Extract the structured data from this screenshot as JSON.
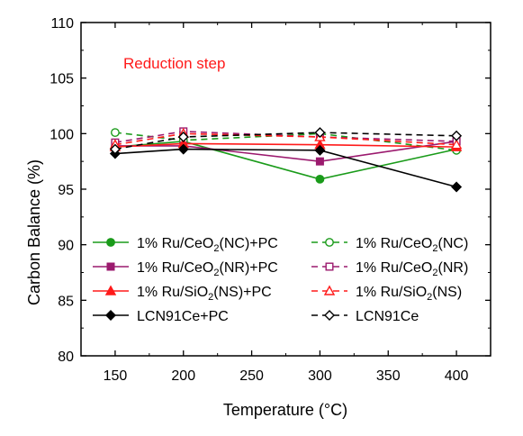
{
  "chart_data": {
    "type": "line",
    "title": "",
    "annotation": "Reduction step",
    "annotation_color": "#ff1a1a",
    "xlabel": "Temperature (°C)",
    "ylabel": "Carbon Balance (%)",
    "xlim": [
      125,
      425
    ],
    "ylim": [
      80,
      110
    ],
    "xticks": [
      150,
      200,
      250,
      300,
      350,
      400
    ],
    "yticks": [
      80,
      85,
      90,
      95,
      100,
      105,
      110
    ],
    "grid": false,
    "legend_position": "bottom-left",
    "x": [
      150,
      200,
      300,
      400
    ],
    "series": [
      {
        "name": "1% Ru/CeO2(NC)+PC",
        "label_parts": [
          "1% Ru/CeO",
          "2",
          "(NC)+PC"
        ],
        "color": "#1a9b1a",
        "dash": "solid",
        "marker": "circle",
        "filled": true,
        "values": [
          98.8,
          99.3,
          95.9,
          98.6
        ]
      },
      {
        "name": "1% Ru/CeO2(NC)",
        "label_parts": [
          "1% Ru/CeO",
          "2",
          "(NC)"
        ],
        "color": "#1a9b1a",
        "dash": "dashed",
        "marker": "circle",
        "filled": false,
        "values": [
          100.1,
          99.4,
          100.0,
          98.5
        ]
      },
      {
        "name": "1% Ru/CeO2(NR)+PC",
        "label_parts": [
          "1% Ru/CeO",
          "2",
          "(NR)+PC"
        ],
        "color": "#9b1a6e",
        "dash": "solid",
        "marker": "square",
        "filled": true,
        "values": [
          98.9,
          98.9,
          97.5,
          99.3
        ]
      },
      {
        "name": "1% Ru/CeO2(NR)",
        "label_parts": [
          "1% Ru/CeO",
          "2",
          "(NR)"
        ],
        "color": "#9b1a6e",
        "dash": "dashed",
        "marker": "square",
        "filled": false,
        "values": [
          99.2,
          100.2,
          99.7,
          99.3
        ]
      },
      {
        "name": "1% Ru/SiO2(NS)+PC",
        "label_parts": [
          "1% Ru/SiO",
          "2",
          "(NS)+PC"
        ],
        "color": "#ff1a1a",
        "dash": "solid",
        "marker": "triangle",
        "filled": true,
        "values": [
          98.8,
          99.1,
          99.0,
          98.8
        ]
      },
      {
        "name": "1% Ru/SiO2(NS)",
        "label_parts": [
          "1% Ru/SiO",
          "2",
          "(NS)"
        ],
        "color": "#ff1a1a",
        "dash": "dashed",
        "marker": "triangle",
        "filled": false,
        "values": [
          99.0,
          100.0,
          99.7,
          99.0
        ]
      },
      {
        "name": "LCN91Ce+PC",
        "label_parts": [
          "LCN91Ce+PC",
          "",
          ""
        ],
        "color": "#000000",
        "dash": "solid",
        "marker": "diamond",
        "filled": true,
        "values": [
          98.2,
          98.6,
          98.5,
          95.2
        ]
      },
      {
        "name": "LCN91Ce",
        "label_parts": [
          "LCN91Ce",
          "",
          ""
        ],
        "color": "#000000",
        "dash": "dashed",
        "marker": "diamond",
        "filled": false,
        "values": [
          98.6,
          99.7,
          100.1,
          99.8
        ]
      }
    ]
  }
}
